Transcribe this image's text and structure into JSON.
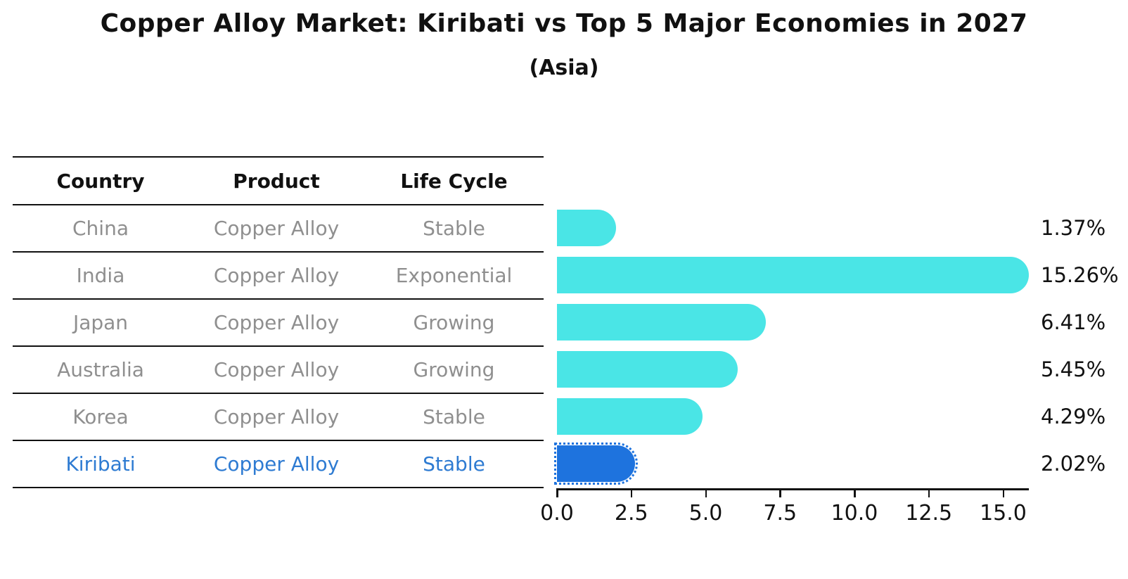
{
  "title": "Copper Alloy Market: Kiribati vs Top 5 Major Economies in 2027",
  "subtitle": "(Asia)",
  "table": {
    "columns": [
      "Country",
      "Product",
      "Life Cycle"
    ],
    "rows": [
      {
        "country": "China",
        "product": "Copper Alloy",
        "life_cycle": "Stable",
        "highlight": false
      },
      {
        "country": "India",
        "product": "Copper Alloy",
        "life_cycle": "Exponential",
        "highlight": false
      },
      {
        "country": "Japan",
        "product": "Copper Alloy",
        "life_cycle": "Growing",
        "highlight": false
      },
      {
        "country": "Australia",
        "product": "Copper Alloy",
        "life_cycle": "Growing",
        "highlight": false
      },
      {
        "country": "Korea",
        "product": "Copper Alloy",
        "life_cycle": "Stable",
        "highlight": false
      },
      {
        "country": "Kiribati",
        "product": "Copper Alloy",
        "life_cycle": "Stable",
        "highlight": true
      }
    ]
  },
  "chart_data": {
    "type": "bar",
    "orientation": "horizontal",
    "title": "Copper Alloy Market: Kiribati vs Top 5 Major Economies in 2027",
    "subtitle": "(Asia)",
    "categories": [
      "China",
      "India",
      "Japan",
      "Australia",
      "Korea",
      "Kiribati"
    ],
    "values": [
      1.37,
      15.26,
      6.41,
      5.45,
      4.29,
      2.02
    ],
    "value_labels": [
      "1.37%",
      "15.26%",
      "6.41%",
      "5.45%",
      "4.29%",
      "2.02%"
    ],
    "x_ticks": [
      0.0,
      2.5,
      5.0,
      7.5,
      10.0,
      12.5,
      15.0
    ],
    "x_tick_labels": [
      "0.0",
      "2.5",
      "5.0",
      "7.5",
      "10.0",
      "12.5",
      "15.0"
    ],
    "xlim": [
      0,
      16
    ],
    "grid": false,
    "legend": false,
    "bar_color": "#4ae5e6",
    "highlight_color": "#1e73de",
    "highlight_index": 5,
    "highlight_style": "dotted-outline",
    "axis_color": "#111111",
    "muted_text_color": "#8f8f8f",
    "highlight_text_color": "#2e7bd2"
  }
}
